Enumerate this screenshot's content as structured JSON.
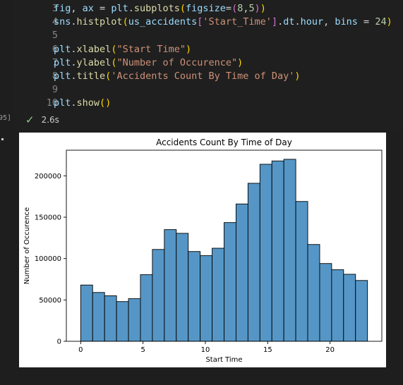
{
  "code_cell": {
    "lines": [
      {
        "n": "3",
        "tokens": [
          {
            "t": "fig",
            "c": "t-var"
          },
          {
            "t": ", ",
            "c": "t-op"
          },
          {
            "t": "ax",
            "c": "t-var"
          },
          {
            "t": " = ",
            "c": "t-op"
          },
          {
            "t": "plt",
            "c": "t-var"
          },
          {
            "t": ".",
            "c": "t-op"
          },
          {
            "t": "subplots",
            "c": "t-fn"
          },
          {
            "t": "(",
            "c": "t-br1"
          },
          {
            "t": "figsize",
            "c": "t-var"
          },
          {
            "t": "=",
            "c": "t-op"
          },
          {
            "t": "(",
            "c": "t-br2"
          },
          {
            "t": "8",
            "c": "t-num"
          },
          {
            "t": ",",
            "c": "t-op"
          },
          {
            "t": "5",
            "c": "t-num"
          },
          {
            "t": ")",
            "c": "t-br2"
          },
          {
            "t": ")",
            "c": "t-br1"
          }
        ]
      },
      {
        "n": "4",
        "tokens": [
          {
            "t": "sns",
            "c": "t-var"
          },
          {
            "t": ".",
            "c": "t-op"
          },
          {
            "t": "histplot",
            "c": "t-fn"
          },
          {
            "t": "(",
            "c": "t-br1"
          },
          {
            "t": "us_accidents",
            "c": "t-var"
          },
          {
            "t": "[",
            "c": "t-br2"
          },
          {
            "t": "'Start_Time'",
            "c": "t-str"
          },
          {
            "t": "]",
            "c": "t-br2"
          },
          {
            "t": ".",
            "c": "t-op"
          },
          {
            "t": "dt",
            "c": "t-var"
          },
          {
            "t": ".",
            "c": "t-op"
          },
          {
            "t": "hour",
            "c": "t-var"
          },
          {
            "t": ", ",
            "c": "t-op"
          },
          {
            "t": "bins",
            "c": "t-var"
          },
          {
            "t": " = ",
            "c": "t-op"
          },
          {
            "t": "24",
            "c": "t-num"
          },
          {
            "t": ")",
            "c": "t-br1"
          }
        ]
      },
      {
        "n": "5",
        "tokens": []
      },
      {
        "n": "6",
        "tokens": [
          {
            "t": "plt",
            "c": "t-var"
          },
          {
            "t": ".",
            "c": "t-op"
          },
          {
            "t": "xlabel",
            "c": "t-fn"
          },
          {
            "t": "(",
            "c": "t-br1"
          },
          {
            "t": "\"Start Time\"",
            "c": "t-str"
          },
          {
            "t": ")",
            "c": "t-br1"
          }
        ]
      },
      {
        "n": "7",
        "tokens": [
          {
            "t": "plt",
            "c": "t-var"
          },
          {
            "t": ".",
            "c": "t-op"
          },
          {
            "t": "ylabel",
            "c": "t-fn"
          },
          {
            "t": "(",
            "c": "t-br1"
          },
          {
            "t": "\"Number of Occurence\"",
            "c": "t-str"
          },
          {
            "t": ")",
            "c": "t-br1"
          }
        ]
      },
      {
        "n": "8",
        "tokens": [
          {
            "t": "plt",
            "c": "t-var"
          },
          {
            "t": ".",
            "c": "t-op"
          },
          {
            "t": "title",
            "c": "t-fn"
          },
          {
            "t": "(",
            "c": "t-br1"
          },
          {
            "t": "'Accidents Count By Time of Day'",
            "c": "t-str"
          },
          {
            "t": ")",
            "c": "t-br1"
          }
        ]
      },
      {
        "n": "9",
        "tokens": []
      },
      {
        "n": "10",
        "tokens": [
          {
            "t": "plt",
            "c": "t-var"
          },
          {
            "t": ".",
            "c": "t-op"
          },
          {
            "t": "show",
            "c": "t-fn"
          },
          {
            "t": "(",
            "c": "t-br1"
          },
          {
            "t": ")",
            "c": "t-br1"
          }
        ]
      }
    ]
  },
  "execution": {
    "count_fragment": "95]",
    "duration": "2.6s",
    "check_icon": "check-icon"
  },
  "chart_data": {
    "type": "bar",
    "title": "Accidents Count By Time of Day",
    "xlabel": "Start Time",
    "ylabel": "Number of Occurence",
    "bin_edges": [
      0.0,
      0.958,
      1.917,
      2.875,
      3.833,
      4.792,
      5.75,
      6.708,
      7.667,
      8.625,
      9.583,
      10.542,
      11.5,
      12.458,
      13.417,
      14.375,
      15.333,
      16.292,
      17.25,
      18.208,
      19.167,
      20.125,
      21.083,
      22.042,
      23.0
    ],
    "values": [
      68000,
      59000,
      55000,
      48000,
      51500,
      80500,
      111000,
      135000,
      130500,
      108500,
      103500,
      112500,
      143500,
      166000,
      191000,
      214000,
      218000,
      220000,
      169000,
      117000,
      94000,
      86500,
      81000,
      73500
    ],
    "xlim": [
      -1.15,
      24.15
    ],
    "ylim": [
      0,
      231000
    ],
    "xticks": [
      0,
      5,
      10,
      15,
      20
    ],
    "xtick_labels": [
      "0",
      "5",
      "10",
      "15",
      "20"
    ],
    "yticks": [
      0,
      50000,
      100000,
      150000,
      200000
    ],
    "ytick_labels": [
      "0",
      "50000",
      "100000",
      "150000",
      "200000"
    ],
    "bar_color": "#5596c6",
    "edge_color": "#000000",
    "grid": false
  }
}
